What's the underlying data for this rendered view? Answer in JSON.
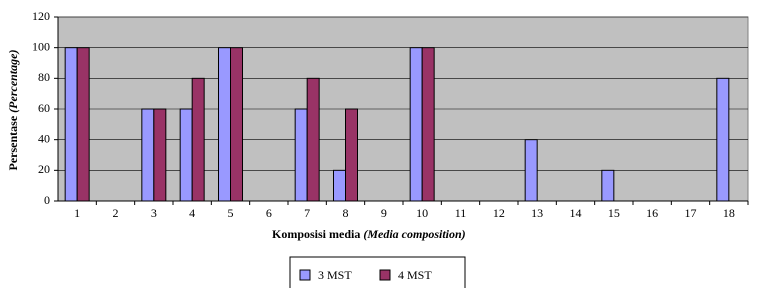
{
  "chart_data": {
    "type": "bar",
    "x_label": [
      "Komposisi media",
      "(Media composition)"
    ],
    "y_label": [
      "Persentase",
      "(Percentage)"
    ],
    "categories": [
      "1",
      "2",
      "3",
      "4",
      "5",
      "6",
      "7",
      "8",
      "9",
      "10",
      "11",
      "12",
      "13",
      "14",
      "15",
      "16",
      "17",
      "18"
    ],
    "series": [
      {
        "name": "3 MST",
        "color": "#9999ff",
        "values": [
          100,
          0,
          60,
          60,
          100,
          0,
          60,
          20,
          0,
          100,
          0,
          0,
          40,
          0,
          20,
          0,
          0,
          80
        ]
      },
      {
        "name": "4 MST",
        "color": "#993366",
        "values": [
          100,
          0,
          60,
          80,
          100,
          0,
          80,
          60,
          0,
          100,
          0,
          0,
          0,
          0,
          0,
          0,
          0,
          0
        ]
      }
    ],
    "ylim": [
      0,
      120
    ],
    "yticks": [
      0,
      20,
      40,
      60,
      80,
      100,
      120
    ],
    "grid": true,
    "plot_background": "#c0c0c0"
  }
}
